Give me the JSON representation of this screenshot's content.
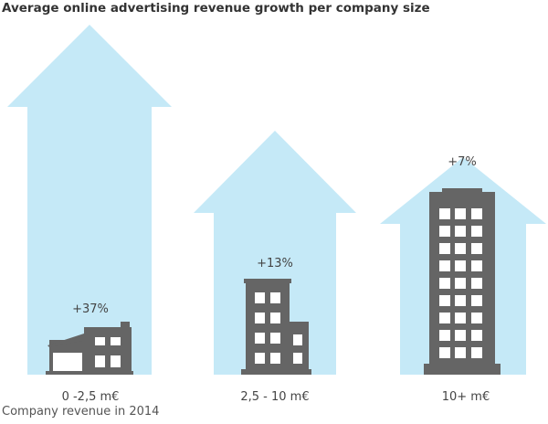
{
  "chart_data": {
    "type": "bar",
    "title": "Average online advertising revenue growth per company size",
    "xlabel": "Company revenue in 2014",
    "ylabel": "",
    "categories": [
      "0 -2,5 m€",
      "2,5 - 10 m€",
      "10+ m€"
    ],
    "values": [
      37,
      13,
      7
    ],
    "value_labels": [
      "+37%",
      "+13%",
      "+7%"
    ],
    "unit": "%",
    "grid": false,
    "legend": "none"
  },
  "colors": {
    "arrow": "#c5e9f7",
    "building": "#656565",
    "window": "#ffffff",
    "title_text": "#333333",
    "label_text": "#444444"
  },
  "icons": [
    "small-house-icon",
    "mid-rise-building-icon",
    "skyscraper-icon"
  ]
}
